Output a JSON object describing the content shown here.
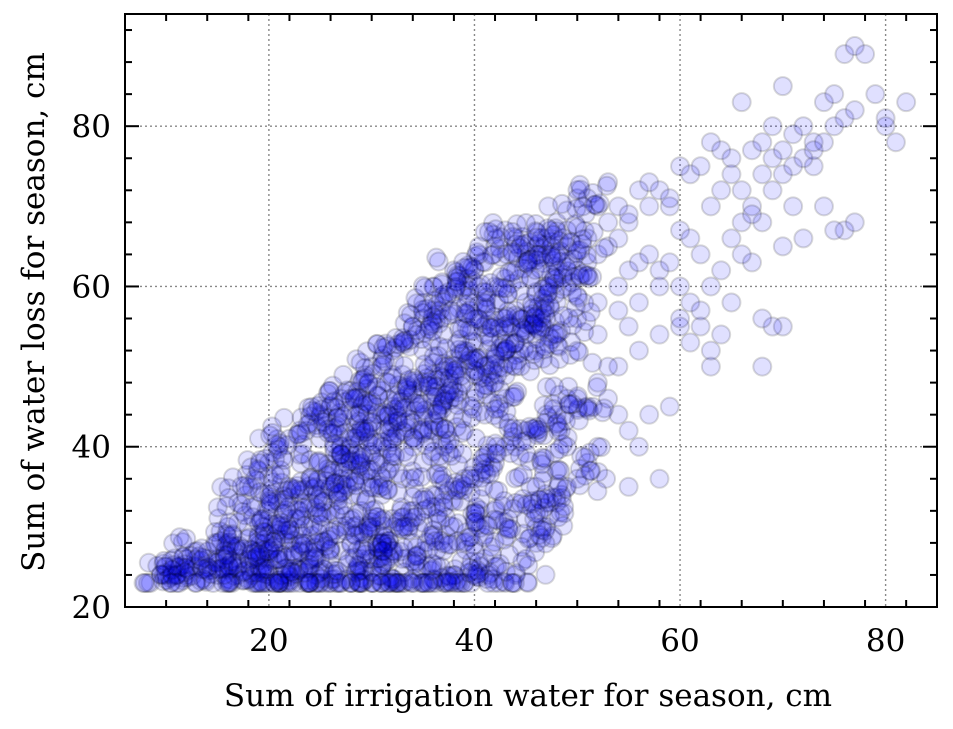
{
  "chart_data": {
    "type": "scatter",
    "xlabel": "Sum of irrigation water for season, cm",
    "ylabel": "Sum of water loss for season, cm",
    "xlim": [
      6,
      85
    ],
    "ylim": [
      20,
      94
    ],
    "xticks": [
      20,
      40,
      60,
      80
    ],
    "yticks": [
      20,
      40,
      60,
      80
    ],
    "x_tick_labels": [
      "20",
      "40",
      "60",
      "80"
    ],
    "y_tick_labels": [
      "20",
      "40",
      "60",
      "80"
    ],
    "grid": true,
    "legend": "none",
    "marker_color": "#0000ff",
    "marker_edge_color": "#000000",
    "marker_alpha": 0.12,
    "points": [
      [
        10,
        24
      ],
      [
        11,
        25
      ],
      [
        12,
        26
      ],
      [
        13,
        27
      ],
      [
        14,
        25
      ],
      [
        15,
        28
      ],
      [
        16,
        30
      ],
      [
        17,
        33
      ],
      [
        18,
        35
      ],
      [
        19,
        37
      ],
      [
        20,
        38
      ],
      [
        21,
        40
      ],
      [
        22,
        41
      ],
      [
        23,
        42
      ],
      [
        24,
        43
      ],
      [
        25,
        44
      ],
      [
        26,
        45
      ],
      [
        27,
        46
      ],
      [
        28,
        47
      ],
      [
        29,
        48
      ],
      [
        30,
        50
      ],
      [
        31,
        51
      ],
      [
        32,
        52
      ],
      [
        33,
        53
      ],
      [
        34,
        55
      ],
      [
        35,
        56
      ],
      [
        36,
        57
      ],
      [
        37,
        58
      ],
      [
        38,
        59
      ],
      [
        39,
        60
      ],
      [
        40,
        62
      ],
      [
        41,
        63
      ],
      [
        42,
        65
      ],
      [
        43,
        67
      ],
      [
        44,
        66
      ],
      [
        45,
        64
      ],
      [
        46,
        65
      ],
      [
        47,
        66
      ],
      [
        48,
        68
      ],
      [
        49,
        67
      ],
      [
        50,
        71
      ],
      [
        51,
        71
      ],
      [
        52,
        70
      ],
      [
        53,
        73
      ],
      [
        54,
        70
      ],
      [
        55,
        68
      ],
      [
        56,
        72
      ],
      [
        57,
        73
      ],
      [
        58,
        72
      ],
      [
        59,
        70
      ],
      [
        60,
        75
      ],
      [
        61,
        74
      ],
      [
        62,
        75
      ],
      [
        63,
        78
      ],
      [
        64,
        77
      ],
      [
        65,
        76
      ],
      [
        66,
        83
      ],
      [
        67,
        77
      ],
      [
        68,
        78
      ],
      [
        69,
        80
      ],
      [
        70,
        85
      ],
      [
        71,
        79
      ],
      [
        72,
        80
      ],
      [
        73,
        78
      ],
      [
        74,
        83
      ],
      [
        75,
        84
      ],
      [
        76,
        89
      ],
      [
        77,
        90
      ],
      [
        78,
        89
      ],
      [
        79,
        84
      ],
      [
        80,
        81
      ],
      [
        82,
        83
      ],
      [
        81,
        78
      ],
      [
        80,
        80
      ],
      [
        76,
        67
      ],
      [
        77,
        68
      ],
      [
        75,
        67
      ],
      [
        74,
        70
      ],
      [
        73,
        75
      ],
      [
        72,
        66
      ],
      [
        71,
        70
      ],
      [
        70,
        65
      ],
      [
        70,
        55
      ],
      [
        69,
        55
      ],
      [
        68,
        50
      ],
      [
        68,
        56
      ],
      [
        67,
        63
      ],
      [
        66,
        64
      ],
      [
        65,
        58
      ],
      [
        64,
        54
      ],
      [
        63,
        50
      ],
      [
        63,
        52
      ],
      [
        62,
        55
      ],
      [
        61,
        53
      ],
      [
        60,
        55
      ],
      [
        59,
        45
      ],
      [
        58,
        36
      ],
      [
        57,
        44
      ],
      [
        56,
        40
      ],
      [
        55,
        35
      ],
      [
        55,
        42
      ],
      [
        54,
        44
      ],
      [
        53,
        46
      ],
      [
        52,
        40
      ],
      [
        51,
        38
      ],
      [
        50,
        36
      ],
      [
        49,
        35
      ],
      [
        48,
        33
      ],
      [
        47,
        30
      ],
      [
        46,
        28
      ],
      [
        45,
        26
      ],
      [
        44,
        24
      ],
      [
        43,
        23
      ],
      [
        42,
        25
      ],
      [
        41,
        26
      ],
      [
        40,
        24
      ],
      [
        39,
        23
      ],
      [
        38,
        24
      ],
      [
        37,
        23
      ],
      [
        36,
        23.5
      ],
      [
        35,
        23
      ],
      [
        34,
        23.5
      ],
      [
        33,
        23
      ],
      [
        32,
        23.5
      ],
      [
        31,
        23
      ],
      [
        30,
        23
      ],
      [
        29,
        23
      ],
      [
        28,
        23
      ],
      [
        27,
        23
      ],
      [
        26,
        23
      ],
      [
        25,
        23
      ],
      [
        24,
        23
      ],
      [
        23,
        23
      ],
      [
        22,
        23
      ],
      [
        21,
        23
      ],
      [
        20,
        23
      ],
      [
        19,
        23
      ],
      [
        18,
        23.5
      ],
      [
        17,
        24
      ],
      [
        16,
        23.5
      ],
      [
        15,
        24
      ],
      [
        14,
        26
      ],
      [
        13,
        25
      ],
      [
        12,
        24
      ],
      [
        11,
        24
      ],
      [
        10,
        25
      ],
      [
        9.5,
        24
      ],
      [
        15,
        26
      ],
      [
        16,
        28
      ],
      [
        17,
        27
      ],
      [
        18,
        30
      ],
      [
        19,
        29
      ],
      [
        20,
        32
      ],
      [
        21,
        33
      ],
      [
        22,
        35
      ],
      [
        23,
        34
      ],
      [
        24,
        36
      ],
      [
        25,
        38
      ],
      [
        26,
        37
      ],
      [
        27,
        40
      ],
      [
        28,
        41
      ],
      [
        29,
        42
      ],
      [
        30,
        43
      ],
      [
        31,
        44
      ],
      [
        32,
        45
      ],
      [
        33,
        46
      ],
      [
        34,
        47
      ],
      [
        35,
        48
      ],
      [
        36,
        49
      ],
      [
        37,
        50
      ],
      [
        38,
        51
      ],
      [
        39,
        52
      ],
      [
        40,
        53
      ],
      [
        41,
        54
      ],
      [
        42,
        55
      ],
      [
        43,
        56
      ],
      [
        44,
        57
      ],
      [
        45,
        58
      ],
      [
        46,
        59
      ],
      [
        47,
        60
      ],
      [
        48,
        61
      ],
      [
        49,
        60
      ],
      [
        50,
        62
      ],
      [
        51,
        63
      ],
      [
        52,
        64
      ],
      [
        53,
        65
      ],
      [
        54,
        66
      ],
      [
        55,
        62
      ],
      [
        56,
        63
      ],
      [
        57,
        64
      ],
      [
        58,
        62
      ],
      [
        59,
        63
      ],
      [
        60,
        60
      ],
      [
        61,
        58
      ],
      [
        62,
        57
      ],
      [
        63,
        60
      ],
      [
        64,
        62
      ],
      [
        65,
        66
      ],
      [
        66,
        68
      ],
      [
        67,
        70
      ],
      [
        68,
        68
      ],
      [
        69,
        72
      ],
      [
        70,
        74
      ],
      [
        71,
        75
      ],
      [
        72,
        76
      ],
      [
        73,
        77
      ],
      [
        74,
        78
      ],
      [
        75,
        80
      ],
      [
        76,
        81
      ],
      [
        77,
        82
      ],
      [
        20,
        26
      ],
      [
        22,
        28
      ],
      [
        24,
        30
      ],
      [
        26,
        32
      ],
      [
        28,
        34
      ],
      [
        30,
        36
      ],
      [
        32,
        38
      ],
      [
        34,
        40
      ],
      [
        36,
        42
      ],
      [
        38,
        44
      ],
      [
        40,
        46
      ],
      [
        42,
        48
      ],
      [
        44,
        50
      ],
      [
        46,
        52
      ],
      [
        48,
        54
      ],
      [
        50,
        56
      ],
      [
        52,
        58
      ],
      [
        54,
        60
      ],
      [
        56,
        58
      ],
      [
        58,
        60
      ],
      [
        22,
        24
      ],
      [
        24,
        26
      ],
      [
        26,
        27
      ],
      [
        28,
        28
      ],
      [
        30,
        30
      ],
      [
        32,
        31
      ],
      [
        34,
        32
      ],
      [
        36,
        34
      ],
      [
        38,
        35
      ],
      [
        40,
        36
      ],
      [
        42,
        38
      ],
      [
        44,
        40
      ],
      [
        46,
        42
      ],
      [
        48,
        44
      ],
      [
        50,
        46
      ],
      [
        52,
        48
      ],
      [
        54,
        50
      ],
      [
        56,
        52
      ],
      [
        58,
        54
      ],
      [
        60,
        56
      ],
      [
        18,
        26
      ],
      [
        19,
        27
      ],
      [
        20,
        29
      ],
      [
        21,
        30
      ],
      [
        22,
        31
      ],
      [
        23,
        32
      ],
      [
        24,
        33
      ],
      [
        25,
        34
      ],
      [
        26,
        35
      ],
      [
        27,
        36
      ],
      [
        28,
        37
      ],
      [
        29,
        38
      ],
      [
        30,
        39
      ],
      [
        31,
        40
      ],
      [
        32,
        41
      ],
      [
        33,
        42
      ],
      [
        34,
        43
      ],
      [
        35,
        44
      ],
      [
        36,
        45
      ],
      [
        37,
        46
      ],
      [
        38,
        47
      ],
      [
        39,
        48
      ],
      [
        40,
        49
      ],
      [
        41,
        50
      ],
      [
        42,
        51
      ],
      [
        43,
        52
      ],
      [
        44,
        53
      ],
      [
        45,
        54
      ],
      [
        46,
        55
      ],
      [
        47,
        56
      ],
      [
        30,
        26
      ],
      [
        32,
        27
      ],
      [
        34,
        28
      ],
      [
        36,
        29
      ],
      [
        38,
        30
      ],
      [
        40,
        31
      ],
      [
        42,
        32
      ],
      [
        44,
        33
      ],
      [
        46,
        35
      ],
      [
        48,
        37
      ],
      [
        31,
        28
      ],
      [
        33,
        30
      ],
      [
        35,
        32
      ],
      [
        37,
        34
      ],
      [
        39,
        36
      ],
      [
        41,
        38
      ],
      [
        43,
        40
      ],
      [
        45,
        42
      ],
      [
        47,
        44
      ],
      [
        49,
        46
      ],
      [
        25,
        28
      ],
      [
        27,
        30
      ],
      [
        29,
        32
      ],
      [
        31,
        34
      ],
      [
        33,
        36
      ],
      [
        35,
        38
      ],
      [
        37,
        40
      ],
      [
        39,
        42
      ],
      [
        41,
        44
      ],
      [
        43,
        46
      ],
      [
        17,
        25
      ],
      [
        19,
        25
      ],
      [
        21,
        26
      ],
      [
        23,
        27
      ],
      [
        25,
        26
      ],
      [
        27,
        27
      ],
      [
        29,
        26
      ],
      [
        31,
        27
      ],
      [
        33,
        26
      ],
      [
        35,
        27
      ],
      [
        37,
        27
      ],
      [
        39,
        28
      ],
      [
        41,
        29
      ],
      [
        43,
        30
      ],
      [
        45,
        31
      ],
      [
        47,
        33
      ],
      [
        49,
        40
      ],
      [
        51,
        45
      ],
      [
        53,
        50
      ],
      [
        55,
        55
      ],
      [
        36,
        60
      ],
      [
        38,
        62
      ],
      [
        40,
        58
      ],
      [
        42,
        60
      ],
      [
        44,
        62
      ],
      [
        46,
        56
      ],
      [
        48,
        58
      ],
      [
        50,
        52
      ],
      [
        52,
        54
      ],
      [
        54,
        57
      ],
      [
        23,
        39
      ],
      [
        25,
        41
      ],
      [
        27,
        43
      ],
      [
        29,
        45
      ],
      [
        31,
        47
      ],
      [
        33,
        49
      ],
      [
        35,
        52
      ],
      [
        37,
        54
      ],
      [
        39,
        56
      ],
      [
        41,
        58
      ],
      [
        43,
        61
      ],
      [
        45,
        63
      ],
      [
        47,
        64
      ],
      [
        49,
        65
      ],
      [
        51,
        66
      ],
      [
        53,
        68
      ],
      [
        55,
        69
      ],
      [
        57,
        70
      ],
      [
        59,
        71
      ],
      [
        60,
        67
      ],
      [
        61,
        66
      ],
      [
        62,
        64
      ],
      [
        63,
        70
      ],
      [
        64,
        72
      ],
      [
        65,
        74
      ],
      [
        66,
        72
      ],
      [
        67,
        69
      ],
      [
        68,
        74
      ],
      [
        69,
        76
      ],
      [
        70,
        77
      ]
    ]
  }
}
